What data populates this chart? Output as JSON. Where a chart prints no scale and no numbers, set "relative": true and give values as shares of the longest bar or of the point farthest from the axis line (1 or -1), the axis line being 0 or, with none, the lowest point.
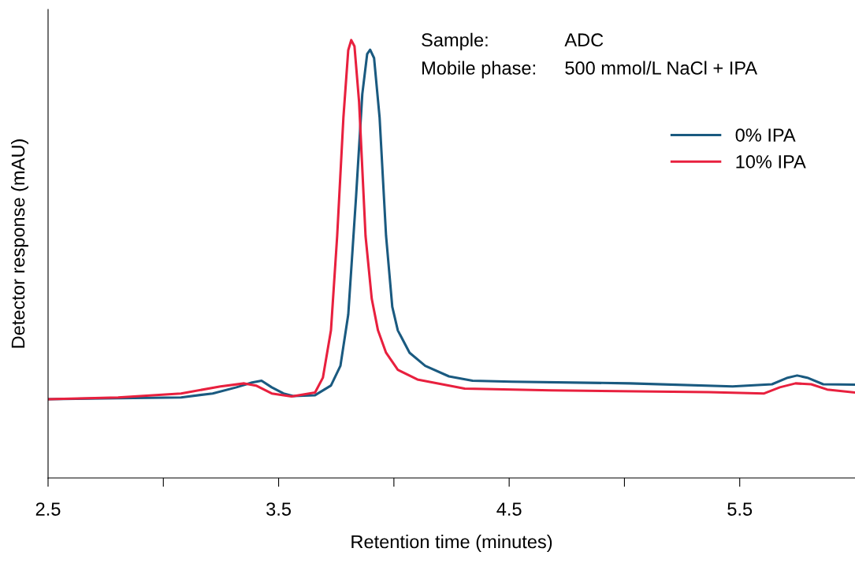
{
  "chart_data": {
    "type": "line",
    "relative": true,
    "xlabel": "Retention time (minutes)",
    "ylabel": "Detector response (mAU)",
    "annotations": [
      "Sample:",
      "ADC",
      "Mobile phase:",
      "500 mmol/L NaCl + IPA"
    ],
    "xlim": [
      2.5,
      6.0
    ],
    "xticks": [
      2.5,
      {
        "value": 3.0,
        "label": null
      },
      3.5,
      {
        "value": 4.0,
        "label": null
      },
      4.5,
      {
        "value": 5.0,
        "label": null
      },
      5.5
    ],
    "legend": "right",
    "grid": false,
    "marker": "none",
    "line_style": "solid",
    "series": [
      {
        "name": "0% IPA",
        "color": "#1a5a80",
        "x": [
          2.5,
          2.804,
          3.077,
          3.214,
          3.317,
          3.385,
          3.426,
          3.47,
          3.521,
          3.563,
          3.658,
          3.727,
          3.768,
          3.802,
          3.836,
          3.863,
          3.884,
          3.897,
          3.914,
          3.938,
          3.966,
          3.993,
          4.017,
          4.068,
          4.136,
          4.239,
          4.341,
          4.512,
          5.025,
          5.469,
          5.64,
          5.708,
          5.749,
          5.793,
          5.862,
          6.0
        ],
        "values": [
          0.18,
          0.182,
          0.184,
          0.193,
          0.207,
          0.218,
          0.222,
          0.207,
          0.193,
          0.187,
          0.189,
          0.211,
          0.256,
          0.373,
          0.643,
          0.877,
          0.968,
          0.978,
          0.959,
          0.823,
          0.553,
          0.391,
          0.337,
          0.286,
          0.256,
          0.232,
          0.222,
          0.22,
          0.216,
          0.209,
          0.214,
          0.229,
          0.234,
          0.229,
          0.214,
          0.213
        ]
      },
      {
        "name": "10% IPA",
        "color": "#e8203e",
        "x": [
          2.5,
          2.804,
          3.077,
          3.248,
          3.351,
          3.402,
          3.47,
          3.556,
          3.658,
          3.692,
          3.727,
          3.754,
          3.781,
          3.802,
          3.815,
          3.829,
          3.849,
          3.877,
          3.904,
          3.931,
          3.966,
          4.017,
          4.102,
          4.307,
          4.683,
          5.366,
          5.606,
          5.674,
          5.742,
          5.81,
          5.879,
          6.0
        ],
        "values": [
          0.18,
          0.184,
          0.193,
          0.209,
          0.216,
          0.211,
          0.193,
          0.186,
          0.195,
          0.229,
          0.337,
          0.553,
          0.823,
          0.977,
          1.0,
          0.986,
          0.859,
          0.553,
          0.409,
          0.337,
          0.286,
          0.247,
          0.225,
          0.204,
          0.2,
          0.196,
          0.193,
          0.207,
          0.216,
          0.214,
          0.202,
          0.195
        ]
      }
    ]
  }
}
